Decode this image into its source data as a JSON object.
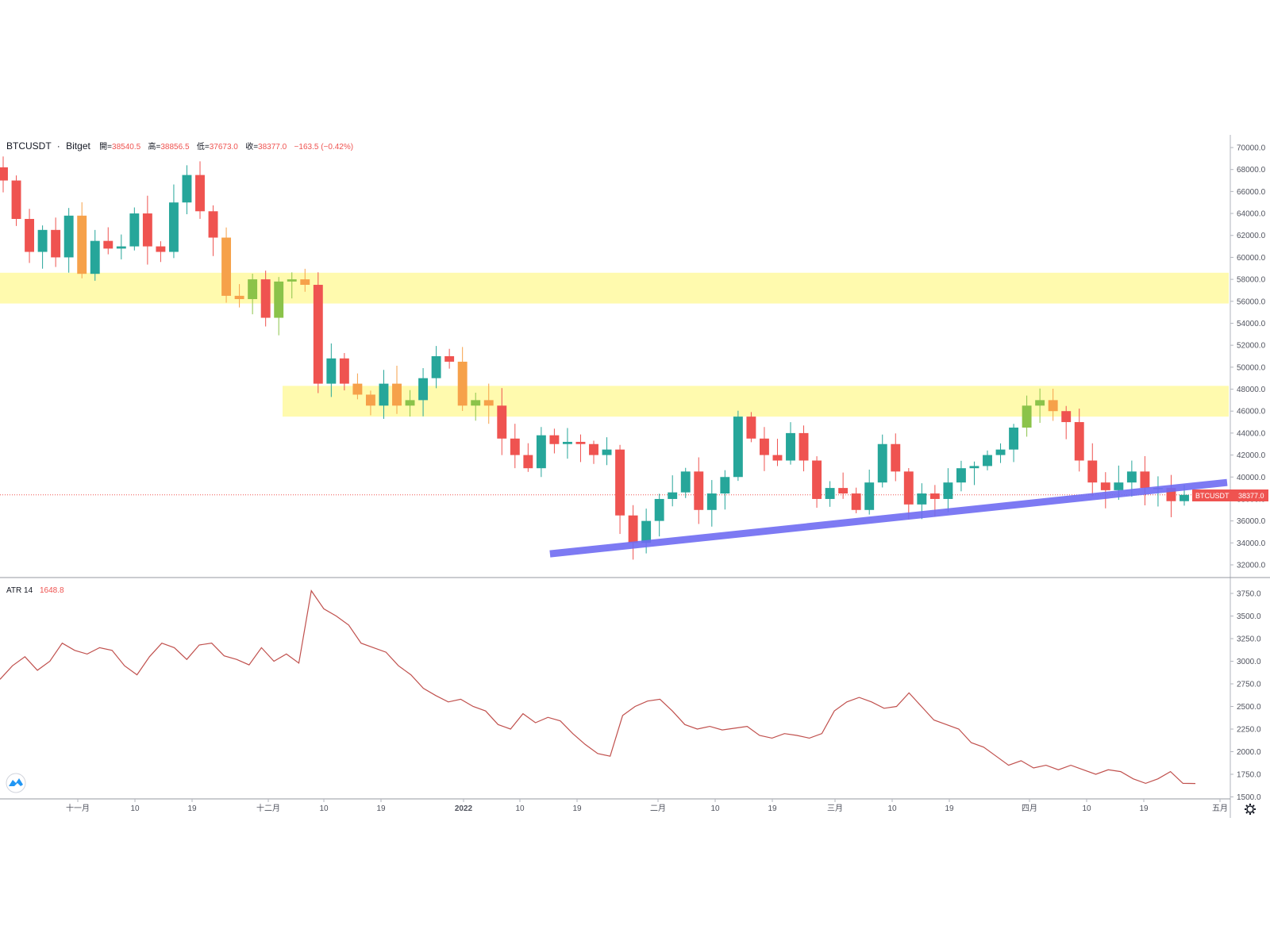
{
  "legend": {
    "symbol": "BTCUSDT",
    "sep": "·",
    "exchange": "Bitget",
    "open_label": "開=",
    "open_value": "38540.5",
    "high_label": "高=",
    "high_value": "38856.5",
    "low_label": "低=",
    "low_value": "37673.0",
    "close_label": "收=",
    "close_value": "38377.0",
    "change": "−163.5 (−0.42%)"
  },
  "atr_legend": {
    "label": "ATR 14",
    "value": "1648.8"
  },
  "price_tag": {
    "symbol": "BTCUSDT",
    "value": "38377.0"
  },
  "colors": {
    "up": "#26a69a",
    "down": "#ef5350",
    "zone": "#fff9a0",
    "trendline": "#6f6cf2",
    "atr_line": "#c0504d",
    "legend_value": "#ef5350"
  },
  "icons": {
    "logo": "tradingview-logo-icon",
    "settings": "gear-icon"
  },
  "chart_data": [
    {
      "type": "candlestick",
      "symbol": "BTCUSDT",
      "exchange": "Bitget",
      "ylim": [
        31000,
        71000
      ],
      "yticks": [
        32000,
        34000,
        36000,
        38000,
        40000,
        42000,
        44000,
        46000,
        48000,
        50000,
        52000,
        54000,
        56000,
        58000,
        60000,
        62000,
        64000,
        66000,
        68000,
        70000
      ],
      "ytick_labels": [
        "32000.0",
        "34000.0",
        "36000.0",
        "38000.0",
        "40000.0",
        "42000.0",
        "44000.0",
        "46000.0",
        "48000.0",
        "50000.0",
        "52000.0",
        "54000.0",
        "56000.0",
        "58000.0",
        "60000.0",
        "62000.0",
        "64000.0",
        "66000.0",
        "68000.0",
        "70000.0"
      ],
      "x_labels": [
        "十一月",
        "10",
        "19",
        "十二月",
        "10",
        "19",
        "2022",
        "10",
        "19",
        "二月",
        "10",
        "19",
        "三月",
        "10",
        "19",
        "四月",
        "10",
        "19",
        "五月"
      ],
      "close_path": [
        67000,
        63500,
        60500,
        62500,
        60000,
        63800,
        58500,
        61500,
        60800,
        61000,
        64000,
        61000,
        60500,
        65000,
        67500,
        64200,
        61800,
        56500,
        56200,
        58000,
        54500,
        57800,
        58000,
        57500,
        48500,
        50800,
        48500,
        47500,
        46500,
        48500,
        46500,
        47000,
        49000,
        51000,
        50500,
        46500,
        47000,
        46500,
        43500,
        42000,
        40800,
        43800,
        43000,
        43200,
        43000,
        42000,
        42500,
        36500,
        34000,
        36000,
        38000,
        38600,
        40500,
        37000,
        38500,
        40000,
        45500,
        43500,
        42000,
        41500,
        44000,
        41500,
        38000,
        39000,
        38500,
        37000,
        39500,
        43000,
        40500,
        37500,
        38500,
        38000,
        39500,
        40800,
        41000,
        42000,
        42500,
        44500,
        46500,
        47000,
        46000,
        45000,
        41500,
        39500,
        38800,
        39500,
        40500,
        39000,
        39000,
        37800,
        38377
      ],
      "zones": [
        {
          "low": 55800,
          "high": 58600
        },
        {
          "low": 45500,
          "high": 48300
        }
      ],
      "trendline": [
        {
          "t": 0.445,
          "price": 33000
        },
        {
          "t": 1.0,
          "price": 39500
        }
      ],
      "last_price": 38377.0
    },
    {
      "type": "line",
      "name": "ATR 14",
      "ylim": [
        1480,
        3830
      ],
      "yticks": [
        1500,
        1750,
        2000,
        2250,
        2500,
        2750,
        3000,
        3250,
        3500,
        3750
      ],
      "ytick_labels": [
        "1500.0",
        "1750.0",
        "2000.0",
        "2250.0",
        "2500.0",
        "2750.0",
        "3000.0",
        "3250.0",
        "3500.0",
        "3750.0"
      ],
      "values": [
        2800,
        2950,
        3050,
        2900,
        3000,
        3200,
        3120,
        3080,
        3150,
        3120,
        2950,
        2850,
        3050,
        3200,
        3150,
        3020,
        3180,
        3200,
        3060,
        3020,
        2960,
        3150,
        3000,
        3080,
        2980,
        3780,
        3580,
        3500,
        3400,
        3200,
        3150,
        3100,
        2950,
        2850,
        2700,
        2620,
        2550,
        2580,
        2500,
        2450,
        2300,
        2250,
        2420,
        2320,
        2380,
        2340,
        2200,
        2080,
        1980,
        1950,
        2400,
        2500,
        2560,
        2580,
        2450,
        2300,
        2250,
        2280,
        2240,
        2260,
        2280,
        2180,
        2150,
        2200,
        2180,
        2150,
        2200,
        2450,
        2550,
        2600,
        2550,
        2480,
        2500,
        2650,
        2500,
        2350,
        2300,
        2250,
        2100,
        2050,
        1950,
        1850,
        1900,
        1820,
        1850,
        1800,
        1850,
        1800,
        1750,
        1800,
        1780,
        1700,
        1650,
        1700,
        1780,
        1650,
        1648
      ]
    }
  ]
}
